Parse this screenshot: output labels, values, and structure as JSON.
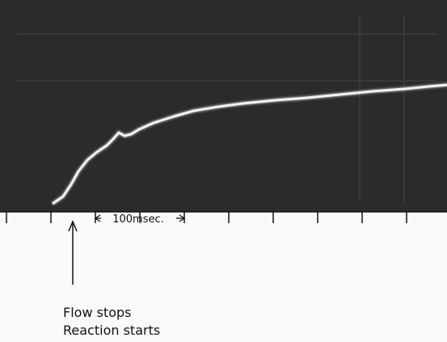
{
  "annotations": {
    "time_scale": "100msec.",
    "event_lines": [
      "Flow stops",
      "Reaction starts"
    ]
  }
}
